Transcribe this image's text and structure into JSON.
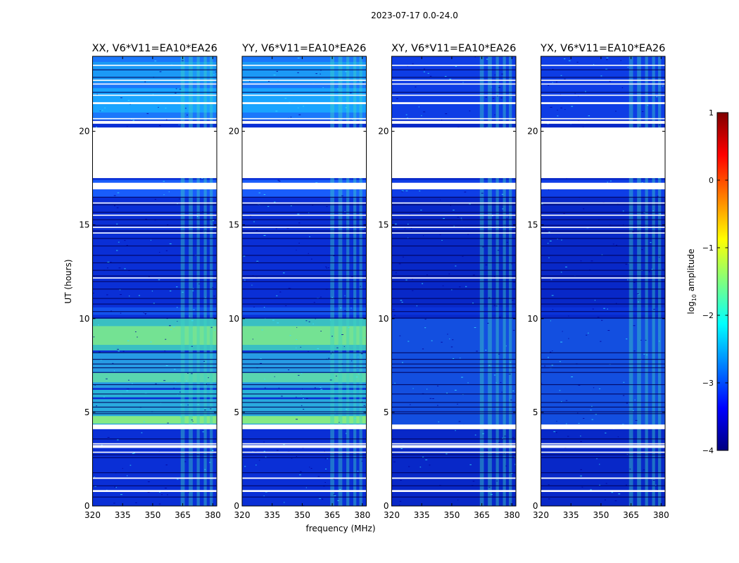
{
  "chart_data": {
    "type": "heatmap",
    "title": "2023-07-17 0.0-24.0",
    "xlabel": "frequency (MHz)",
    "ylabel": "UT (hours)",
    "xlim": [
      320,
      382
    ],
    "ylim": [
      0,
      24
    ],
    "xticks": [
      320,
      335,
      350,
      365,
      380
    ],
    "yticks": [
      0,
      5,
      10,
      15,
      20
    ],
    "colorbar": {
      "label": "log10 amplitude",
      "label_base": "log",
      "label_sub": "10",
      "label_rest": " amplitude",
      "range": [
        -4,
        1
      ],
      "ticks": [
        "1",
        "0",
        "−1",
        "−2",
        "−3",
        "−4"
      ],
      "colormap": [
        "#00007f",
        "#0000ff",
        "#007fff",
        "#00ffff",
        "#7fff7f",
        "#ffff00",
        "#ff7f00",
        "#ff0000",
        "#7f0000"
      ]
    },
    "panels": [
      {
        "id": "xx",
        "title": "XX, V6*V11=EA10*EA26",
        "parallel_hand": true
      },
      {
        "id": "yy",
        "title": "YY, V6*V11=EA10*EA26",
        "parallel_hand": true
      },
      {
        "id": "xy",
        "title": "XY, V6*V11=EA10*EA26",
        "parallel_hand": false
      },
      {
        "id": "yx",
        "title": "YX, V6*V11=EA10*EA26",
        "parallel_hand": false
      }
    ],
    "flagged_ranges_hours": [
      [
        17.5,
        20.2
      ],
      [
        16.9,
        17.25
      ],
      [
        21.45,
        21.55
      ],
      [
        20.4,
        20.55
      ],
      [
        4.1,
        4.35
      ],
      [
        3.1,
        3.25
      ],
      [
        0.75,
        0.85
      ],
      [
        1.45,
        1.52
      ]
    ],
    "rfi_band_mhz": [
      [
        364,
        366
      ],
      [
        368,
        370
      ],
      [
        372,
        373.5
      ],
      [
        375.5,
        377
      ],
      [
        378.5,
        380
      ]
    ]
  }
}
